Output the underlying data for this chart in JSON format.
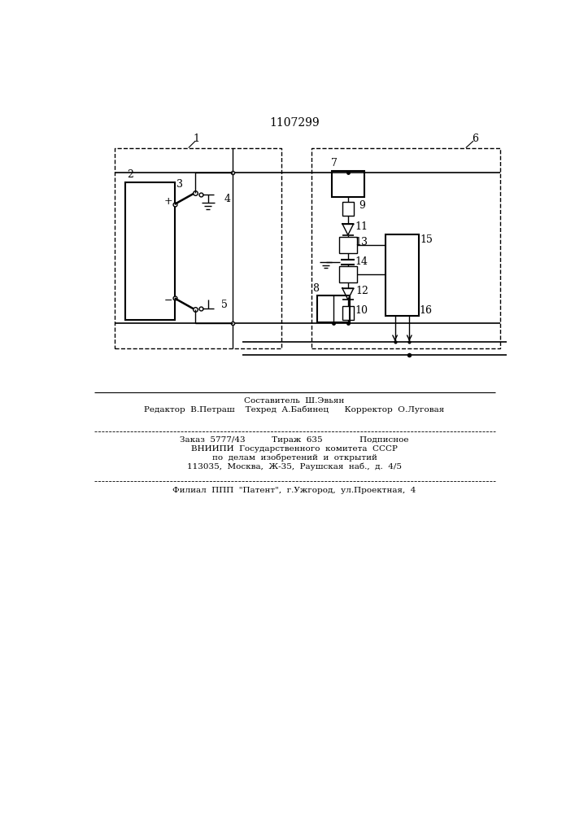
{
  "title": "1107299",
  "bg_color": "#ffffff",
  "line_color": "#000000",
  "fig_width": 7.07,
  "fig_height": 10.0,
  "dpi": 100,
  "footer": {
    "line1": "Составитель  Ш.Эвьян",
    "line2": "Редактор  В.Петраш    Техред  А.Бабинец      Корректор  О.Луговая",
    "line3": "Заказ  5777/43          Тираж  635              Подписное",
    "line4": "ВНИИПИ  Государственного  комитета  СССР",
    "line5": "по  делам  изобретений  и  открытий",
    "line6": "113035,  Москва,  Ж-35,  Раушская  наб.,  д.  4/5",
    "line7": "Филиал  ППП  \"Патент\",  г.Ужгород,  ул.Проектная,  4"
  }
}
